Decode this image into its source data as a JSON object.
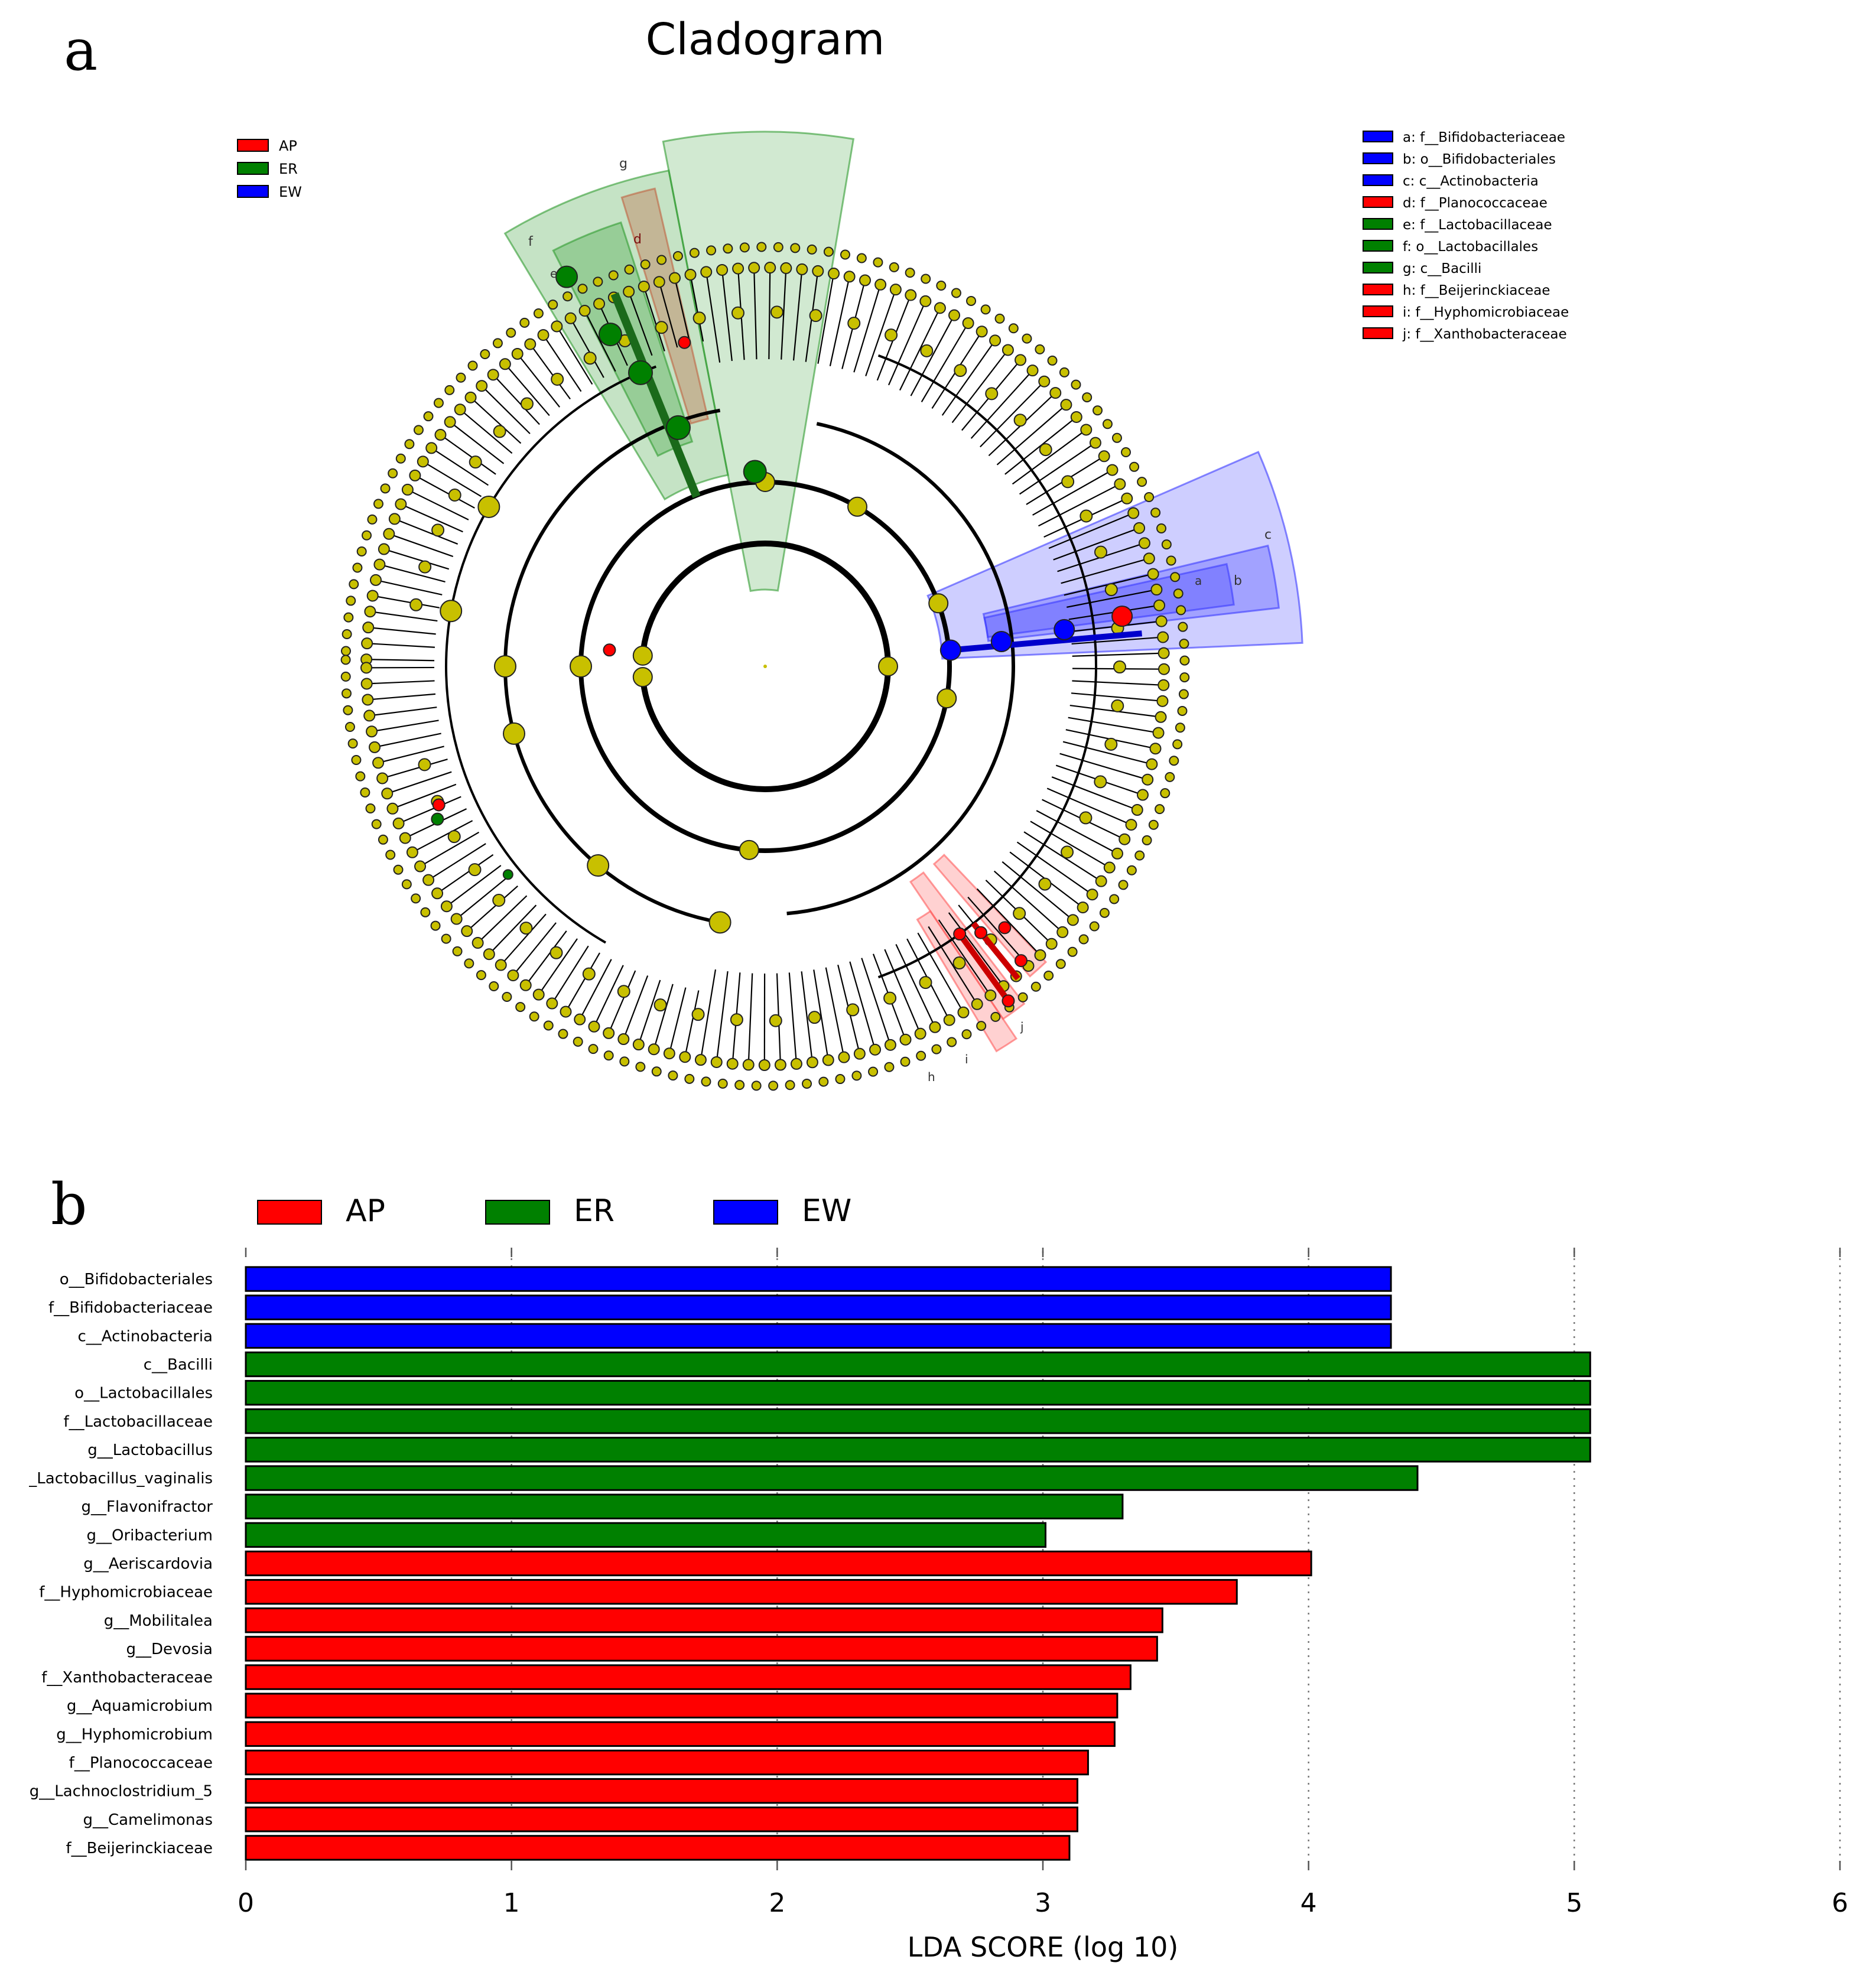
{
  "panel_a": {
    "letter": "a",
    "title": "Cladogram",
    "group_legend": [
      {
        "label": "AP",
        "color": "#ff0000"
      },
      {
        "label": "ER",
        "color": "#008000"
      },
      {
        "label": "EW",
        "color": "#0000ff"
      }
    ],
    "taxa_legend": [
      {
        "label": "a: f__Bifidobacteriaceae",
        "color": "#0000ff"
      },
      {
        "label": "b: o__Bifidobacteriales",
        "color": "#0000ff"
      },
      {
        "label": "c: c__Actinobacteria",
        "color": "#0000ff"
      },
      {
        "label": "d: f__Planococcaceae",
        "color": "#ff0000"
      },
      {
        "label": "e: f__Lactobacillaceae",
        "color": "#008000"
      },
      {
        "label": "f: o__Lactobacillales",
        "color": "#008000"
      },
      {
        "label": "g: c__Bacilli",
        "color": "#008000"
      },
      {
        "label": "h: f__Beijerinckiaceae",
        "color": "#ff0000"
      },
      {
        "label": "i: f__Hyphomicrobiaceae",
        "color": "#ff0000"
      },
      {
        "label": "j: f__Xanthobacteraceae",
        "color": "#ff0000"
      }
    ],
    "clade_labels": [
      "g",
      "f",
      "e",
      "d",
      "c",
      "b",
      "a",
      "h",
      "i",
      "j"
    ],
    "node_color_default": "#c8c000"
  },
  "panel_b": {
    "letter": "b",
    "legend": [
      {
        "label": "AP",
        "color": "#ff0000"
      },
      {
        "label": "ER",
        "color": "#008000"
      },
      {
        "label": "EW",
        "color": "#0000ff"
      }
    ]
  },
  "chart_data": {
    "type": "bar",
    "orientation": "horizontal",
    "title": "",
    "xlabel": "LDA SCORE (log 10)",
    "ylabel": "",
    "xlim": [
      0,
      6
    ],
    "xticks": [
      "0",
      "1",
      "2",
      "3",
      "4",
      "5",
      "6"
    ],
    "grid": "vertical dotted",
    "legend_position": "top",
    "series": [
      {
        "name": "EW",
        "color": "#0000ff"
      },
      {
        "name": "ER",
        "color": "#008000"
      },
      {
        "name": "AP",
        "color": "#ff0000"
      }
    ],
    "bars": [
      {
        "label": "o__Bifidobacteriales",
        "value": 4.31,
        "group": "EW"
      },
      {
        "label": "f__Bifidobacteriaceae",
        "value": 4.31,
        "group": "EW"
      },
      {
        "label": "c__Actinobacteria",
        "value": 4.31,
        "group": "EW"
      },
      {
        "label": "c__Bacilli",
        "value": 5.06,
        "group": "ER"
      },
      {
        "label": "o__Lactobacillales",
        "value": 5.06,
        "group": "ER"
      },
      {
        "label": "f__Lactobacillaceae",
        "value": 5.06,
        "group": "ER"
      },
      {
        "label": "g__Lactobacillus",
        "value": 5.06,
        "group": "ER"
      },
      {
        "label": "_Lactobacillus_vaginalis",
        "value": 4.41,
        "group": "ER"
      },
      {
        "label": "g__Flavonifractor",
        "value": 3.3,
        "group": "ER"
      },
      {
        "label": "g__Oribacterium",
        "value": 3.01,
        "group": "ER"
      },
      {
        "label": "g__Aeriscardovia",
        "value": 4.01,
        "group": "AP"
      },
      {
        "label": "f__Hyphomicrobiaceae",
        "value": 3.73,
        "group": "AP"
      },
      {
        "label": "g__Mobilitalea",
        "value": 3.45,
        "group": "AP"
      },
      {
        "label": "g__Devosia",
        "value": 3.43,
        "group": "AP"
      },
      {
        "label": "f__Xanthobacteraceae",
        "value": 3.33,
        "group": "AP"
      },
      {
        "label": "g__Aquamicrobium",
        "value": 3.28,
        "group": "AP"
      },
      {
        "label": "g__Hyphomicrobium",
        "value": 3.27,
        "group": "AP"
      },
      {
        "label": "f__Planococcaceae",
        "value": 3.17,
        "group": "AP"
      },
      {
        "label": "g__Lachnoclostridium_5",
        "value": 3.13,
        "group": "AP"
      },
      {
        "label": "g__Camelimonas",
        "value": 3.13,
        "group": "AP"
      },
      {
        "label": "f__Beijerinckiaceae",
        "value": 3.1,
        "group": "AP"
      }
    ]
  }
}
